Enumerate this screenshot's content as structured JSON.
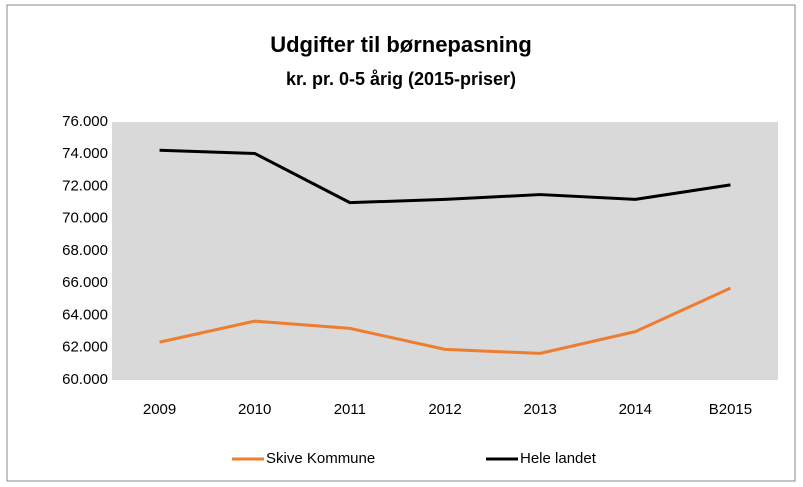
{
  "chart_data": {
    "type": "line",
    "title": "Udgifter til børnepasning",
    "subtitle": "kr. pr. 0-5 årig (2015-priser)",
    "categories": [
      "2009",
      "2010",
      "2011",
      "2012",
      "2013",
      "2014",
      "B2015"
    ],
    "series": [
      {
        "name": "Skive Kommune",
        "color": "#ed7d31",
        "values": [
          62350,
          63650,
          63200,
          61900,
          61650,
          63000,
          65700
        ]
      },
      {
        "name": "Hele landet",
        "color": "#000000",
        "values": [
          74250,
          74050,
          71000,
          71200,
          71500,
          71200,
          72100
        ]
      }
    ],
    "ylim": [
      60000,
      76000
    ],
    "yticks": [
      {
        "value": 60000,
        "label": "60.000"
      },
      {
        "value": 62000,
        "label": "62.000"
      },
      {
        "value": 64000,
        "label": "64.000"
      },
      {
        "value": 66000,
        "label": "66.000"
      },
      {
        "value": 68000,
        "label": "68.000"
      },
      {
        "value": 70000,
        "label": "70.000"
      },
      {
        "value": 72000,
        "label": "72.000"
      },
      {
        "value": 74000,
        "label": "74.000"
      },
      {
        "value": 76000,
        "label": "76.000"
      }
    ],
    "grid": false,
    "legend": "bottom"
  }
}
